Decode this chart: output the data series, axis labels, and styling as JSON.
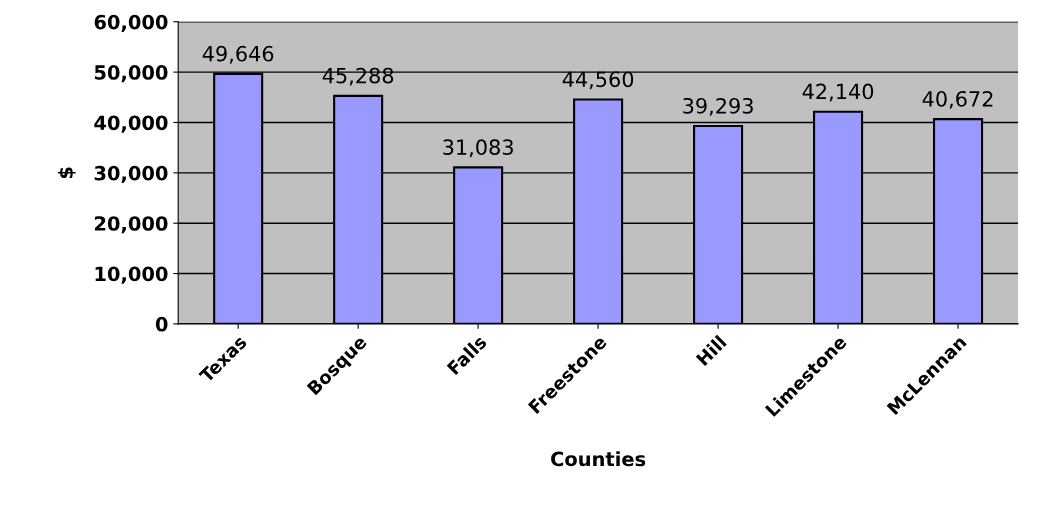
{
  "chart_data": {
    "type": "bar",
    "categories": [
      "Texas",
      "Bosque",
      "Falls",
      "Freestone",
      "Hill",
      "Limestone",
      "McLennan"
    ],
    "values": [
      49646,
      45288,
      31083,
      44560,
      39293,
      42140,
      40672
    ],
    "color": "#9999ff",
    "value_labels": [
      "49,646",
      "45,288",
      "31,083",
      "44,560",
      "39,293",
      "42,140",
      "40,672"
    ],
    "xlabel": "Counties",
    "ylabel": "$",
    "ylim": [
      0,
      60000
    ],
    "yticks": [
      {
        "value": 0,
        "label": "0"
      },
      {
        "value": 10000,
        "label": "10,000"
      },
      {
        "value": 20000,
        "label": "20,000"
      },
      {
        "value": 30000,
        "label": "30,000"
      },
      {
        "value": 40000,
        "label": "40,000"
      },
      {
        "value": 50000,
        "label": "50,000"
      },
      {
        "value": 60000,
        "label": "60,000"
      }
    ],
    "grid": "y",
    "legend": false
  }
}
